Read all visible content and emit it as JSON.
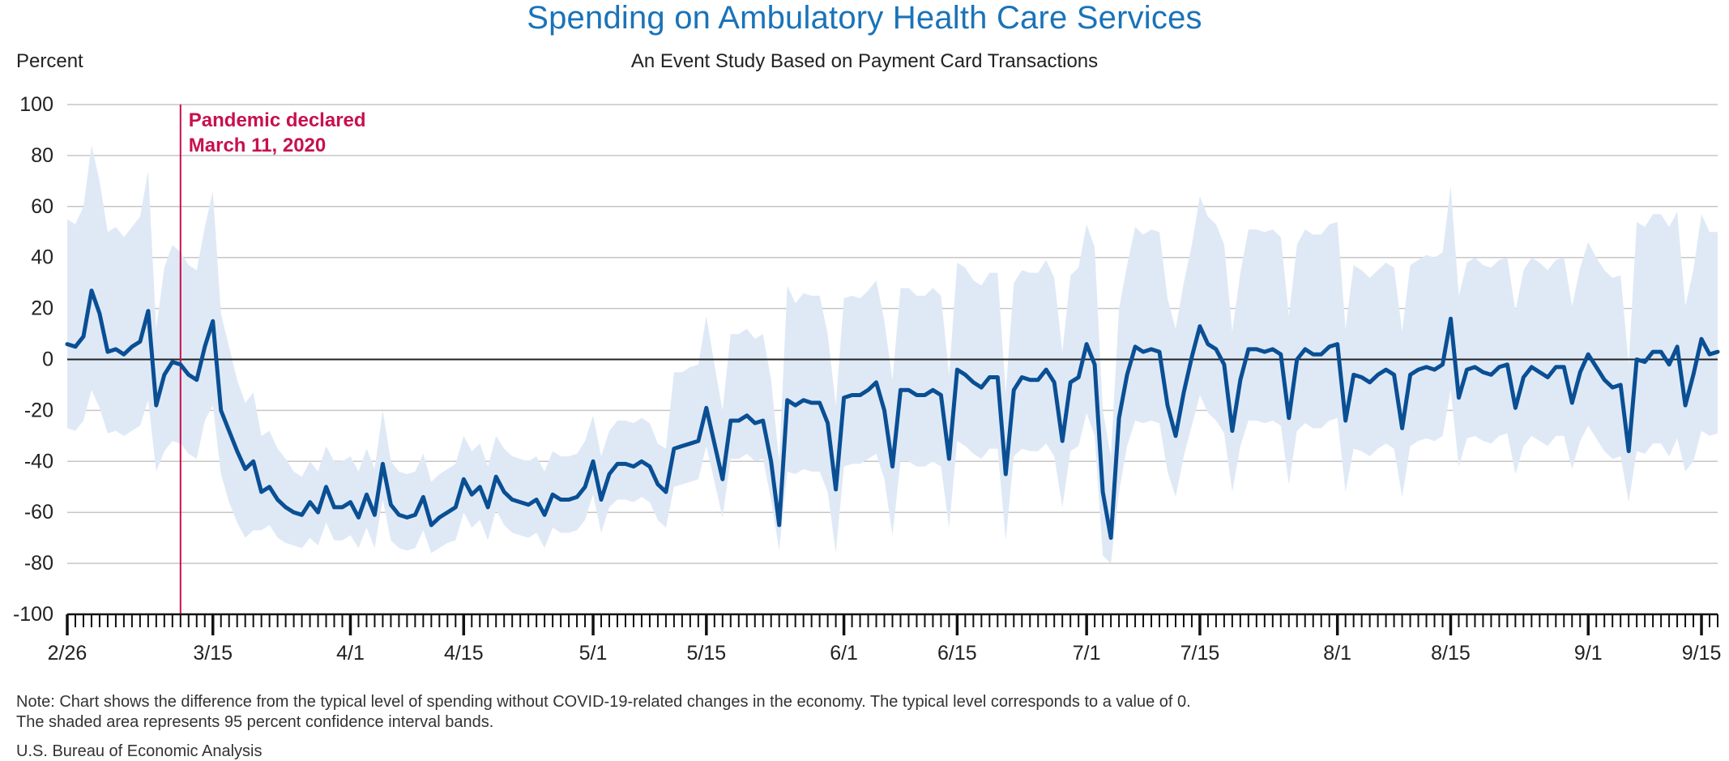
{
  "title": "Spending on Ambulatory Health Care Services",
  "subtitle": "An Event Study Based on Payment Card Transactions",
  "note_line1": "Note: Chart shows the difference from the typical level of spending without COVID-19-related changes in the economy. The typical level corresponds to a value of 0.",
  "note_line2": "The shaded area represents 95 percent confidence interval bands.",
  "source": "U.S. Bureau of Economic Analysis",
  "colors": {
    "title": "#1a73b8",
    "line": "#0a4f94",
    "band": "#dfe9f6",
    "event": "#c8104e",
    "grid": "#c6c6c6"
  },
  "chart_data": {
    "type": "line",
    "ylabel": "Percent",
    "ylim": [
      -100,
      100
    ],
    "yticks": [
      100,
      80,
      60,
      40,
      20,
      0,
      -20,
      -40,
      -60,
      -80,
      -100
    ],
    "grid": true,
    "x_start": "2020-02-26",
    "x_end": "2020-09-17",
    "xtick_labels": [
      {
        "label": "2/26",
        "date": "2020-02-26"
      },
      {
        "label": "3/15",
        "date": "2020-03-15"
      },
      {
        "label": "4/1",
        "date": "2020-04-01"
      },
      {
        "label": "4/15",
        "date": "2020-04-15"
      },
      {
        "label": "5/1",
        "date": "2020-05-01"
      },
      {
        "label": "5/15",
        "date": "2020-05-15"
      },
      {
        "label": "6/1",
        "date": "2020-06-01"
      },
      {
        "label": "6/15",
        "date": "2020-06-15"
      },
      {
        "label": "7/1",
        "date": "2020-07-01"
      },
      {
        "label": "7/15",
        "date": "2020-07-15"
      },
      {
        "label": "8/1",
        "date": "2020-08-01"
      },
      {
        "label": "8/15",
        "date": "2020-08-15"
      },
      {
        "label": "9/1",
        "date": "2020-09-01"
      },
      {
        "label": "9/15",
        "date": "2020-09-15"
      }
    ],
    "event": {
      "date": "2020-03-11",
      "label_line1": "Pandemic declared",
      "label_line2": "March 11, 2020"
    },
    "series": [
      {
        "values": [
          6,
          5,
          9,
          27,
          18,
          3,
          4,
          2,
          5,
          7,
          19,
          -18,
          -6,
          -1,
          -2,
          -6,
          -8,
          5,
          15,
          -20,
          -28,
          -36,
          -43,
          -40,
          -52,
          -50,
          -55,
          -58,
          -60,
          -61,
          -56,
          -60,
          -50,
          -58,
          -58,
          -56,
          -62,
          -53,
          -61,
          -41,
          -57,
          -61,
          -62,
          -61,
          -54,
          -65,
          -62,
          -60,
          -58,
          -47,
          -53,
          -50,
          -58,
          -46,
          -52,
          -55,
          -56,
          -57,
          -55,
          -61,
          -53,
          -55,
          -55,
          -54,
          -50,
          -40,
          -55,
          -45,
          -41,
          -41,
          -42,
          -40,
          -42,
          -49,
          -52,
          -35,
          -34,
          -33,
          -32,
          -19,
          -33,
          -47,
          -24,
          -24,
          -22,
          -25,
          -24,
          -40,
          -65,
          -16,
          -18,
          -16,
          -17,
          -17,
          -25,
          -51,
          -15,
          -14,
          -14,
          -12,
          -9,
          -20,
          -42,
          -12,
          -12,
          -14,
          -14,
          -12,
          -14,
          -39,
          -4,
          -6,
          -9,
          -11,
          -7,
          -7,
          -45,
          -12,
          -7,
          -8,
          -8,
          -4,
          -9,
          -32,
          -9,
          -7,
          6,
          -2,
          -52,
          -70,
          -23,
          -6,
          5,
          3,
          4,
          3,
          -18,
          -30,
          -13,
          1,
          13,
          6,
          4,
          -2,
          -28,
          -8,
          4,
          4,
          3,
          4,
          2,
          -23,
          0,
          4,
          2,
          2,
          5,
          6,
          -24,
          -6,
          -7,
          -9,
          -6,
          -4,
          -6,
          -27,
          -6,
          -4,
          -3,
          -4,
          -2,
          16,
          -15,
          -4,
          -3,
          -5,
          -6,
          -3,
          -2,
          -19,
          -7,
          -3,
          -5,
          -7,
          -3,
          -3,
          -17,
          -5,
          2,
          -3,
          -8,
          -11,
          -10,
          -36,
          0,
          -1,
          3,
          3,
          -2,
          5,
          -18,
          -6,
          8,
          2,
          3
        ],
        "upper": [
          55,
          53,
          60,
          84,
          70,
          50,
          52,
          48,
          52,
          56,
          74,
          12,
          36,
          45,
          42,
          37,
          35,
          52,
          66,
          18,
          5,
          -8,
          -17,
          -13,
          -30,
          -28,
          -35,
          -39,
          -44,
          -46,
          -40,
          -44,
          -34,
          -40,
          -40,
          -38,
          -44,
          -35,
          -43,
          -20,
          -40,
          -44,
          -45,
          -44,
          -37,
          -48,
          -45,
          -43,
          -41,
          -30,
          -36,
          -33,
          -42,
          -30,
          -35,
          -38,
          -39,
          -40,
          -38,
          -44,
          -36,
          -38,
          -38,
          -37,
          -32,
          -22,
          -38,
          -28,
          -24,
          -24,
          -25,
          -23,
          -25,
          -33,
          -35,
          -5,
          -5,
          -3,
          -2,
          17,
          -2,
          -20,
          10,
          10,
          12,
          8,
          10,
          -8,
          -40,
          29,
          22,
          26,
          25,
          25,
          10,
          -18,
          24,
          25,
          24,
          27,
          31,
          15,
          -8,
          28,
          28,
          25,
          25,
          28,
          25,
          -6,
          38,
          36,
          31,
          29,
          34,
          34,
          -13,
          30,
          35,
          34,
          34,
          39,
          32,
          3,
          33,
          36,
          53,
          44,
          -20,
          -38,
          20,
          37,
          52,
          49,
          51,
          50,
          24,
          12,
          30,
          45,
          64,
          56,
          53,
          45,
          11,
          34,
          51,
          51,
          50,
          51,
          48,
          17,
          45,
          51,
          49,
          49,
          53,
          54,
          12,
          37,
          35,
          32,
          35,
          38,
          36,
          11,
          37,
          39,
          41,
          40,
          42,
          68,
          25,
          38,
          40,
          37,
          36,
          39,
          40,
          19,
          35,
          40,
          38,
          35,
          39,
          40,
          21,
          36,
          46,
          40,
          35,
          32,
          33,
          -2,
          54,
          52,
          57,
          57,
          52,
          58,
          21,
          35,
          57,
          50,
          50
        ],
        "lower": [
          -27,
          -28,
          -24,
          -12,
          -19,
          -29,
          -28,
          -30,
          -28,
          -26,
          -16,
          -44,
          -36,
          -32,
          -33,
          -37,
          -39,
          -24,
          -18,
          -45,
          -56,
          -64,
          -70,
          -67,
          -67,
          -65,
          -70,
          -72,
          -73,
          -74,
          -70,
          -73,
          -64,
          -71,
          -71,
          -69,
          -74,
          -66,
          -74,
          -55,
          -71,
          -74,
          -75,
          -74,
          -67,
          -76,
          -74,
          -72,
          -71,
          -60,
          -66,
          -63,
          -71,
          -59,
          -65,
          -68,
          -69,
          -70,
          -68,
          -74,
          -66,
          -68,
          -68,
          -67,
          -63,
          -53,
          -68,
          -58,
          -55,
          -55,
          -56,
          -54,
          -56,
          -63,
          -66,
          -50,
          -49,
          -48,
          -47,
          -34,
          -48,
          -62,
          -39,
          -39,
          -37,
          -40,
          -39,
          -55,
          -75,
          -44,
          -45,
          -43,
          -44,
          -44,
          -52,
          -76,
          -42,
          -41,
          -41,
          -39,
          -37,
          -47,
          -69,
          -40,
          -40,
          -42,
          -42,
          -40,
          -42,
          -66,
          -32,
          -34,
          -37,
          -39,
          -35,
          -35,
          -71,
          -38,
          -35,
          -36,
          -36,
          -33,
          -38,
          -58,
          -36,
          -34,
          -21,
          -30,
          -77,
          -80,
          -52,
          -34,
          -24,
          -25,
          -24,
          -25,
          -44,
          -54,
          -38,
          -26,
          -14,
          -21,
          -24,
          -29,
          -52,
          -34,
          -24,
          -24,
          -25,
          -24,
          -26,
          -49,
          -28,
          -25,
          -27,
          -27,
          -24,
          -23,
          -52,
          -35,
          -36,
          -38,
          -35,
          -33,
          -35,
          -54,
          -34,
          -32,
          -31,
          -32,
          -30,
          -12,
          -42,
          -31,
          -30,
          -32,
          -33,
          -30,
          -29,
          -45,
          -34,
          -30,
          -32,
          -34,
          -30,
          -30,
          -43,
          -32,
          -26,
          -31,
          -36,
          -39,
          -38,
          -56,
          -36,
          -37,
          -33,
          -33,
          -38,
          -31,
          -44,
          -40,
          -28,
          -30,
          -29
        ]
      }
    ]
  }
}
